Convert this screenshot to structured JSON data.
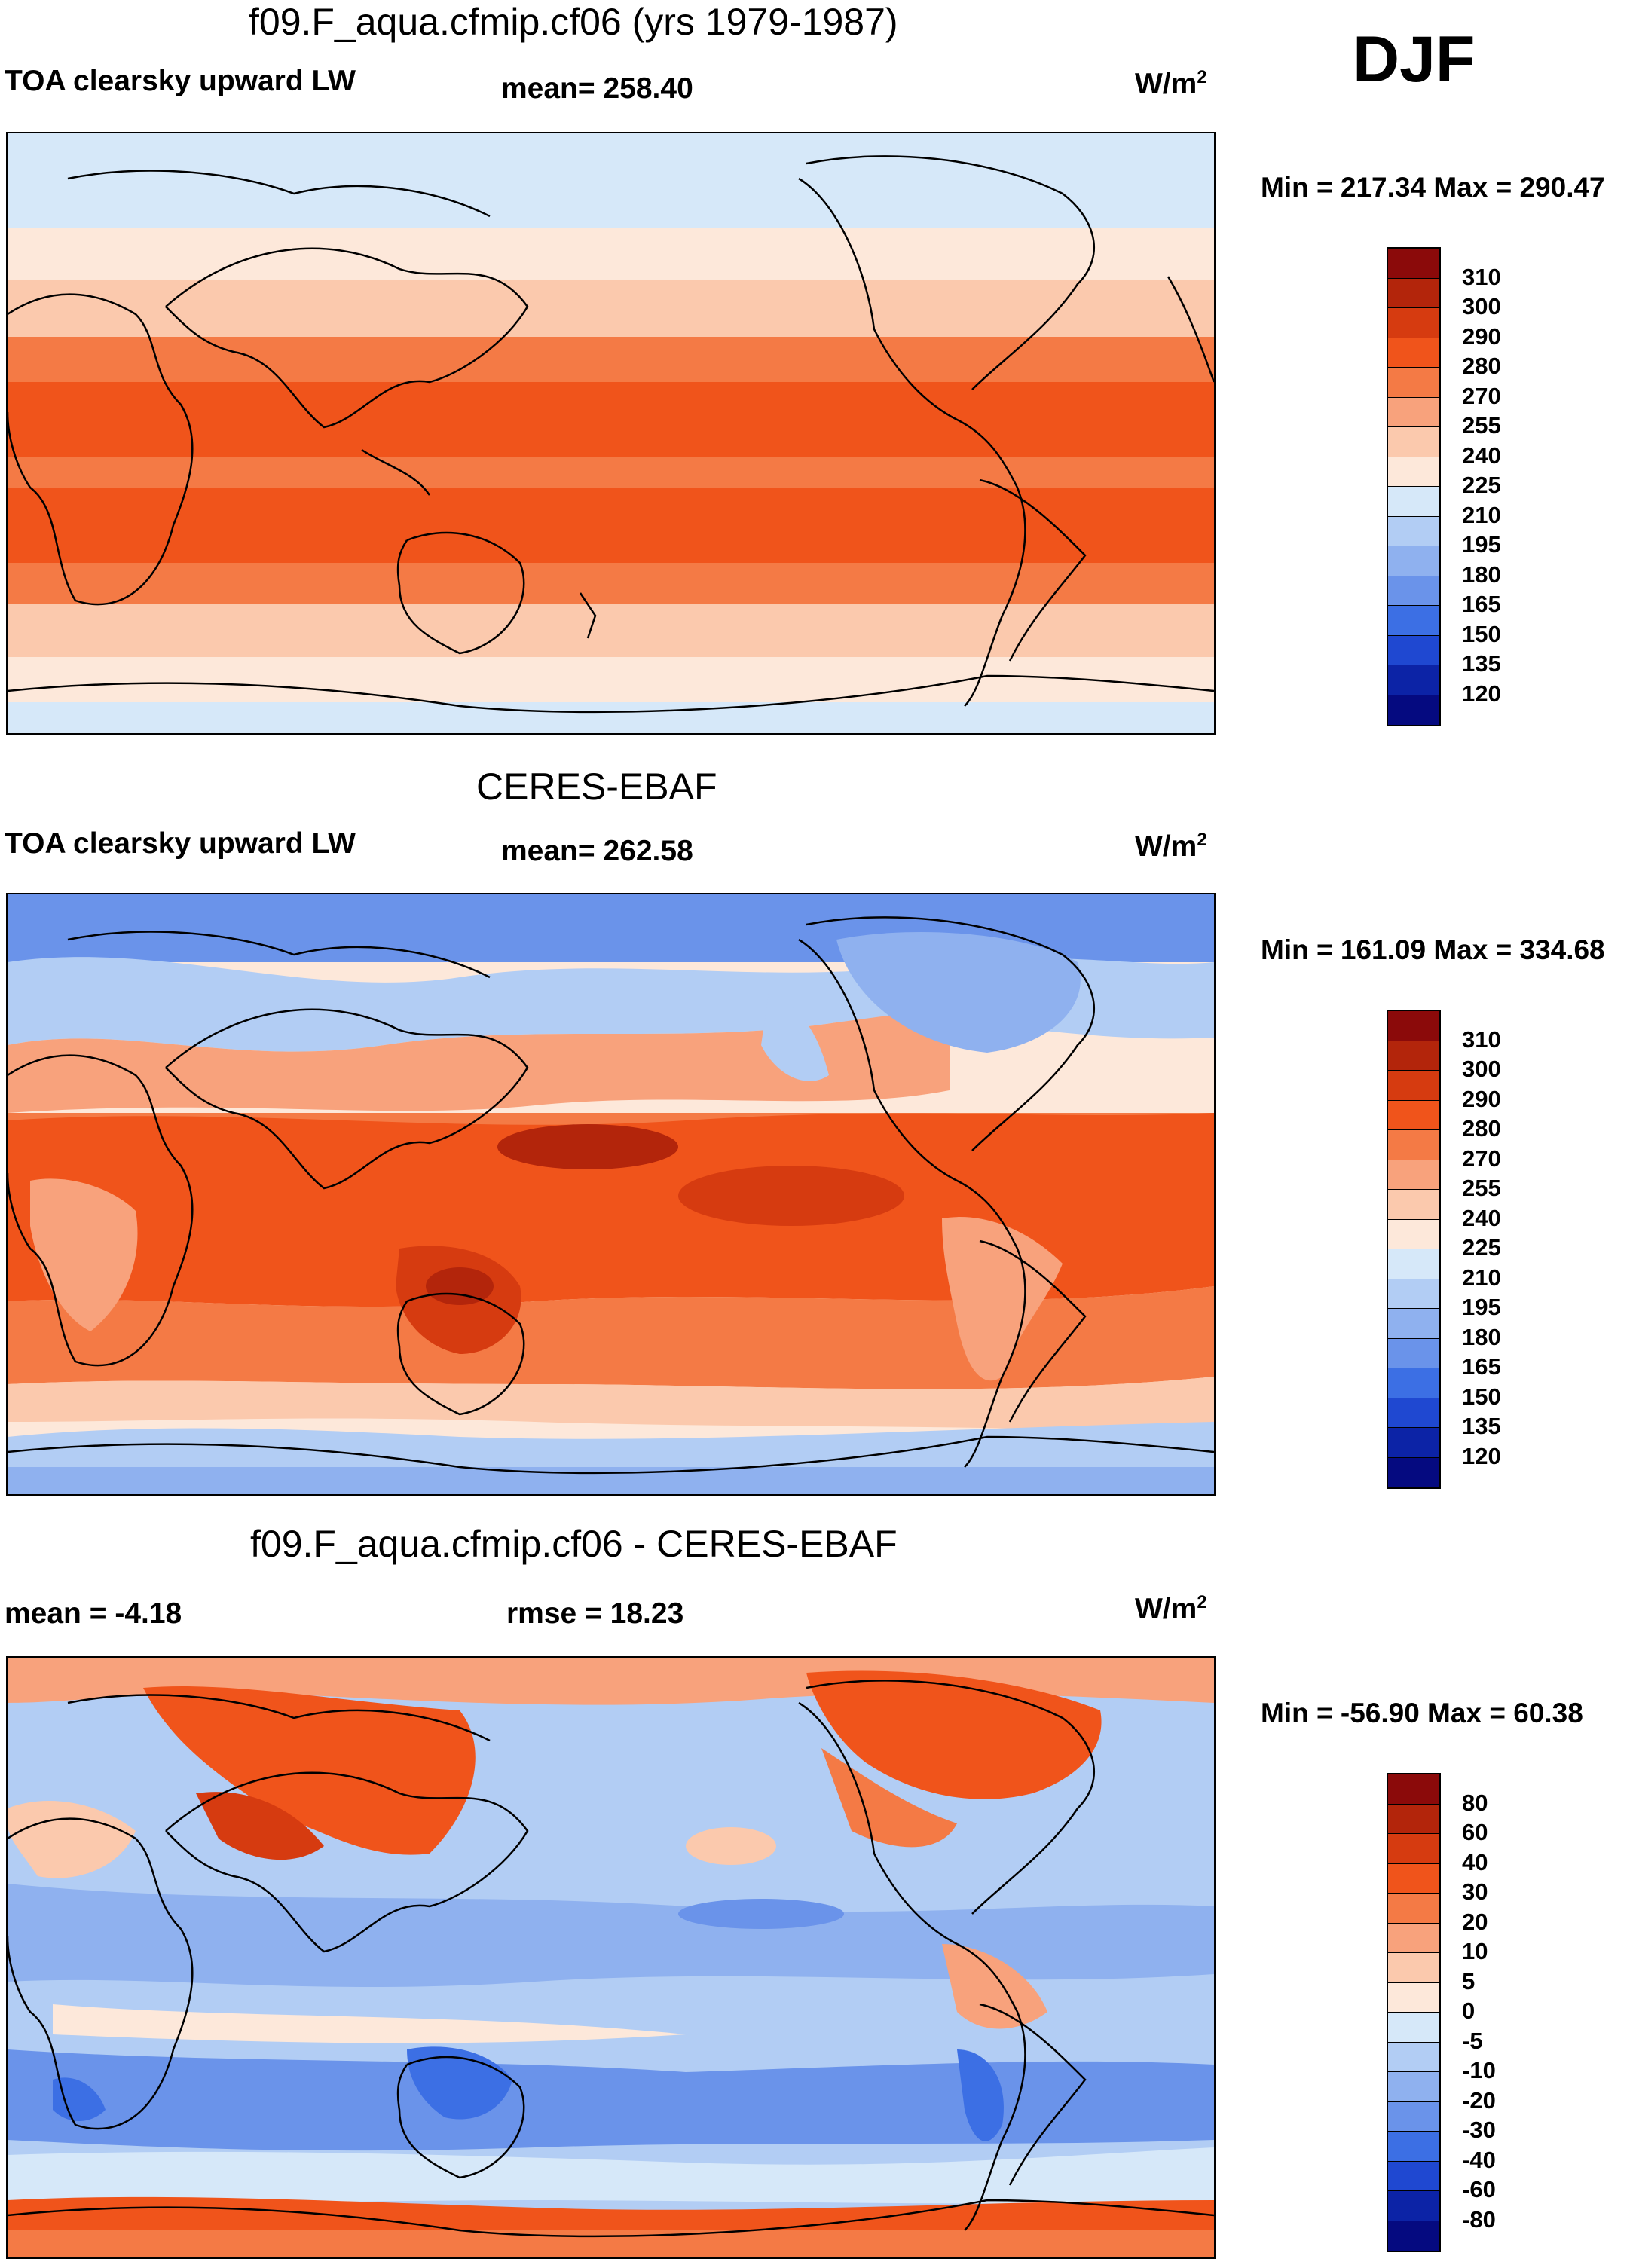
{
  "season": "DJF",
  "units": {
    "base": "W/m",
    "exp": "2"
  },
  "panels": [
    {
      "id": "model",
      "title": "f09.F_aqua.cfmip.cf06 (yrs 1979-1987)",
      "variable": "TOA clearsky upward LW",
      "stat1": "mean= 258.40",
      "stat2": "",
      "minmax": "Min = 217.34 Max = 290.47",
      "levels": [
        "310",
        "300",
        "290",
        "280",
        "270",
        "255",
        "240",
        "225",
        "210",
        "195",
        "180",
        "165",
        "150",
        "135",
        "120"
      ],
      "colors": [
        "#8b0a0a",
        "#b3250b",
        "#d63b10",
        "#f0541b",
        "#f47a45",
        "#f8a27c",
        "#fbc9ad",
        "#fde8da",
        "#d6e8f9",
        "#b2cdf4",
        "#8fb1ef",
        "#6a93ea",
        "#3c6fe4",
        "#1f48d1",
        "#0c23a6",
        "#050a80"
      ]
    },
    {
      "id": "obs",
      "title": "CERES-EBAF",
      "variable": "TOA clearsky upward LW",
      "stat1": "mean= 262.58",
      "stat2": "",
      "minmax": "Min = 161.09 Max = 334.68",
      "levels": [
        "310",
        "300",
        "290",
        "280",
        "270",
        "255",
        "240",
        "225",
        "210",
        "195",
        "180",
        "165",
        "150",
        "135",
        "120"
      ],
      "colors": [
        "#8b0a0a",
        "#b3250b",
        "#d63b10",
        "#f0541b",
        "#f47a45",
        "#f8a27c",
        "#fbc9ad",
        "#fde8da",
        "#d6e8f9",
        "#b2cdf4",
        "#8fb1ef",
        "#6a93ea",
        "#3c6fe4",
        "#1f48d1",
        "#0c23a6",
        "#050a80"
      ]
    },
    {
      "id": "diff",
      "title": "f09.F_aqua.cfmip.cf06 - CERES-EBAF",
      "variable": "mean =  -4.18",
      "stat1": "rmse =  18.23",
      "stat2": "",
      "minmax": "Min = -56.90 Max =  60.38",
      "levels": [
        "80",
        "60",
        "40",
        "30",
        "20",
        "10",
        "5",
        "0",
        "-5",
        "-10",
        "-20",
        "-30",
        "-40",
        "-60",
        "-80"
      ],
      "colors": [
        "#8b0a0a",
        "#b3250b",
        "#d63b10",
        "#f0541b",
        "#f47a45",
        "#f8a27c",
        "#fbc9ad",
        "#fde8da",
        "#d6e8f9",
        "#b2cdf4",
        "#8fb1ef",
        "#6a93ea",
        "#3c6fe4",
        "#1f48d1",
        "#0c23a6",
        "#050a80"
      ]
    }
  ]
}
